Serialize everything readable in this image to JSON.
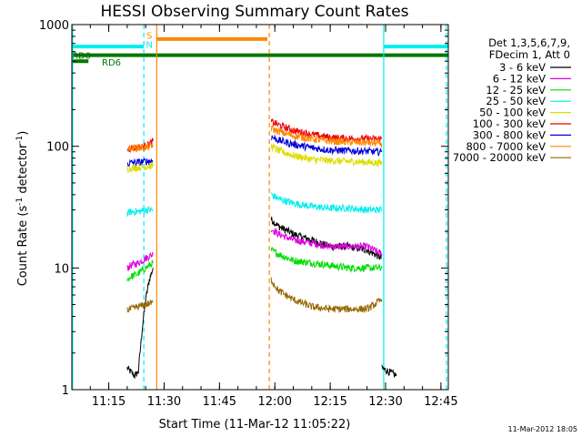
{
  "chart_data": {
    "type": "line",
    "title": "HESSI Observing Summary Count Rates",
    "xlabel": "Start Time (11-Mar-12 11:05:22)",
    "ylabel_main": "Count Rate (s",
    "ylabel_sup1": "-1",
    "ylabel_mid": " detector",
    "ylabel_sup2": "-1",
    "ylabel_end": ")",
    "y_scale": "log",
    "ylim": [
      1,
      1000
    ],
    "xlim": [
      665,
      767
    ],
    "yticks": [
      {
        "value": 1,
        "label": "1"
      },
      {
        "value": 10,
        "label": "10"
      },
      {
        "value": 100,
        "label": "100"
      },
      {
        "value": 1000,
        "label": "1000"
      }
    ],
    "xticks": [
      {
        "value": 675,
        "label": "11:15"
      },
      {
        "value": 690,
        "label": "11:30"
      },
      {
        "value": 705,
        "label": "11:45"
      },
      {
        "value": 720,
        "label": "12:00"
      },
      {
        "value": 735,
        "label": "12:15"
      },
      {
        "value": 750,
        "label": "12:30"
      },
      {
        "value": 765,
        "label": "12:45"
      }
    ],
    "legend_header": [
      "Det 1,3,5,6,7,9,",
      "FDecim 1, Att 0"
    ],
    "series": [
      {
        "name": "3 - 6 keV",
        "color": "#000000",
        "segments": [
          {
            "x": [
              680,
              682,
              683,
              684,
              685,
              686,
              687
            ],
            "y": [
              1.5,
              1.3,
              1.4,
              3.0,
              5.5,
              8.0,
              10
            ]
          },
          {
            "x": [
              719,
              721,
              725,
              730,
              735,
              740,
              745,
              747,
              749
            ],
            "y": [
              25,
              22,
              19,
              17,
              15,
              15,
              14,
              13,
              12
            ]
          },
          {
            "x": [
              749,
              751,
              753
            ],
            "y": [
              1.5,
              1.4,
              1.3
            ]
          }
        ]
      },
      {
        "name": "6 - 12 keV",
        "color": "#dd00dd",
        "segments": [
          {
            "x": [
              680,
              681,
              683,
              685,
              687
            ],
            "y": [
              10,
              10.5,
              11,
              12,
              13
            ]
          },
          {
            "x": [
              719,
              721,
              725,
              730,
              735,
              740,
              745,
              747,
              749
            ],
            "y": [
              21,
              19,
              17,
              16,
              15,
              15,
              15,
              14,
              13
            ]
          }
        ]
      },
      {
        "name": "12 - 25 keV",
        "color": "#00dd00",
        "segments": [
          {
            "x": [
              680,
              681,
              683,
              685,
              687
            ],
            "y": [
              8,
              8.5,
              9,
              10,
              11
            ]
          },
          {
            "x": [
              719,
              721,
              725,
              730,
              735,
              740,
              745,
              747,
              749
            ],
            "y": [
              14,
              13,
              11.5,
              11,
              10.5,
              10,
              10,
              10,
              10
            ]
          }
        ]
      },
      {
        "name": "25 - 50 keV",
        "color": "#00eeee",
        "segments": [
          {
            "x": [
              680,
              681,
              683,
              685,
              687
            ],
            "y": [
              28,
              29,
              29,
              30,
              30
            ]
          },
          {
            "x": [
              719,
              721,
              725,
              730,
              735,
              740,
              745,
              747,
              749
            ],
            "y": [
              40,
              37,
              34,
              32,
              31,
              31,
              30,
              30,
              30
            ]
          }
        ]
      },
      {
        "name": "50 - 100 keV",
        "color": "#dddd00",
        "segments": [
          {
            "x": [
              680,
              681,
              683,
              685,
              687
            ],
            "y": [
              65,
              66,
              67,
              68,
              69
            ]
          },
          {
            "x": [
              719,
              721,
              725,
              730,
              735,
              740,
              745,
              747,
              749
            ],
            "y": [
              100,
              92,
              84,
              78,
              76,
              75,
              74,
              73,
              73
            ]
          }
        ]
      },
      {
        "name": "100 - 300 keV",
        "color": "#ee0000",
        "segments": [
          {
            "x": [
              680,
              681,
              683,
              685,
              687
            ],
            "y": [
              95,
              96,
              98,
              100,
              110
            ]
          },
          {
            "x": [
              719,
              721,
              725,
              730,
              735,
              740,
              745,
              747,
              749
            ],
            "y": [
              160,
              150,
              135,
              125,
              118,
              116,
              115,
              115,
              115
            ]
          }
        ]
      },
      {
        "name": "300 - 800 keV",
        "color": "#0000dd",
        "segments": [
          {
            "x": [
              680,
              681,
              683,
              685,
              687
            ],
            "y": [
              72,
              73,
              74,
              75,
              76
            ]
          },
          {
            "x": [
              719,
              721,
              725,
              730,
              735,
              740,
              745,
              747,
              749
            ],
            "y": [
              120,
              112,
              104,
              97,
              93,
              92,
              91,
              90,
              90
            ]
          }
        ]
      },
      {
        "name": "800 - 7000 keV",
        "color": "#ff8800",
        "segments": [
          {
            "x": [
              680,
              681,
              683,
              685,
              687
            ],
            "y": [
              95,
              96,
              97,
              98,
              100
            ]
          },
          {
            "x": [
              719,
              721,
              725,
              730,
              735,
              740,
              745,
              747,
              749
            ],
            "y": [
              140,
              132,
              122,
              115,
              110,
              108,
              107,
              106,
              105
            ]
          }
        ]
      },
      {
        "name": "7000 - 20000 keV",
        "color": "#996600",
        "segments": [
          {
            "x": [
              680,
              681,
              683,
              685,
              687
            ],
            "y": [
              4.5,
              4.6,
              4.8,
              5.0,
              5.2
            ]
          },
          {
            "x": [
              719,
              721,
              725,
              730,
              735,
              740,
              745,
              747,
              749
            ],
            "y": [
              8.0,
              6.5,
              5.5,
              4.8,
              4.6,
              4.6,
              4.6,
              5.0,
              5.5
            ]
          }
        ]
      }
    ],
    "bars": [
      {
        "label": "RD0",
        "color": "#007700",
        "x0": 665,
        "x1": 767,
        "y": 560
      },
      {
        "label": "RD6",
        "color": "#007700",
        "x0": 665,
        "x1": 669.5,
        "y": 500
      }
    ],
    "state_bars": [
      {
        "color": "#00eeee",
        "x0": 665,
        "x1": 684.5,
        "y": 660
      },
      {
        "color": "#00eeee",
        "x0": 749.5,
        "x1": 767,
        "y": 660
      },
      {
        "color": "#ff8800",
        "x0": 688,
        "x1": 718,
        "y": 760
      }
    ],
    "state_letters": [
      {
        "text": "S",
        "color": "#ff8800",
        "x": 686,
        "y": 820
      },
      {
        "text": "N",
        "color": "#00eeee",
        "x": 686,
        "y": 690
      }
    ],
    "vlines": [
      {
        "x": 665.2,
        "color": "#00eeee",
        "dash": false
      },
      {
        "x": 684.5,
        "color": "#00eeee",
        "dash": true
      },
      {
        "x": 688,
        "color": "#ff8800",
        "dash": false
      },
      {
        "x": 718.5,
        "color": "#ff8800",
        "dash": true
      },
      {
        "x": 749.5,
        "color": "#00eeee",
        "dash": false
      },
      {
        "x": 766.5,
        "color": "#00eeee",
        "dash": true
      }
    ],
    "grid": false,
    "legend_position": "right",
    "footer_date": "11-Mar-2012 18:05"
  }
}
